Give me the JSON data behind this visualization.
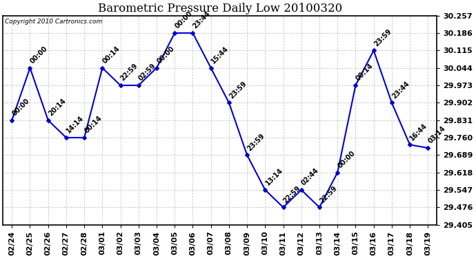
{
  "title": "Barometric Pressure Daily Low 20100320",
  "copyright": "Copyright 2010 Cartronics.com",
  "x_labels": [
    "02/24",
    "02/25",
    "02/26",
    "02/27",
    "02/28",
    "03/01",
    "03/02",
    "03/03",
    "03/04",
    "03/05",
    "03/06",
    "03/07",
    "03/08",
    "03/09",
    "03/10",
    "03/11",
    "03/12",
    "03/13",
    "03/14",
    "03/15",
    "03/16",
    "03/17",
    "03/18",
    "03/19"
  ],
  "y_values": [
    29.831,
    30.044,
    29.831,
    29.76,
    29.76,
    30.044,
    29.973,
    29.973,
    30.044,
    30.186,
    30.186,
    30.044,
    29.902,
    29.689,
    29.547,
    29.476,
    29.547,
    29.476,
    29.618,
    29.973,
    30.115,
    29.902,
    29.731,
    29.718
  ],
  "time_labels": [
    "00:00",
    "00:00",
    "20:14",
    "14:14",
    "00:14",
    "00:14",
    "22:59",
    "02:59",
    "00:00",
    "00:00",
    "23:44",
    "15:44",
    "23:59",
    "23:59",
    "13:14",
    "22:59",
    "02:44",
    "22:59",
    "00:00",
    "00:14",
    "23:59",
    "23:44",
    "16:44",
    "03:14"
  ],
  "ylim_min": 29.405,
  "ylim_max": 30.257,
  "yticks": [
    29.405,
    29.476,
    29.547,
    29.618,
    29.689,
    29.76,
    29.831,
    29.902,
    29.973,
    30.044,
    30.115,
    30.186,
    30.257
  ],
  "ytick_labels": [
    "29.405",
    "29.476",
    "29.547",
    "29.618",
    "29.689",
    "29.760",
    "29.831",
    "29.902",
    "29.973",
    "30.044",
    "30.115",
    "30.186",
    "30.257"
  ],
  "line_color": "#0000cc",
  "marker_color": "#0000cc",
  "bg_color": "#ffffff",
  "grid_color": "#c8c8c8",
  "title_fontsize": 12,
  "tick_fontsize": 8,
  "label_fontsize": 7
}
